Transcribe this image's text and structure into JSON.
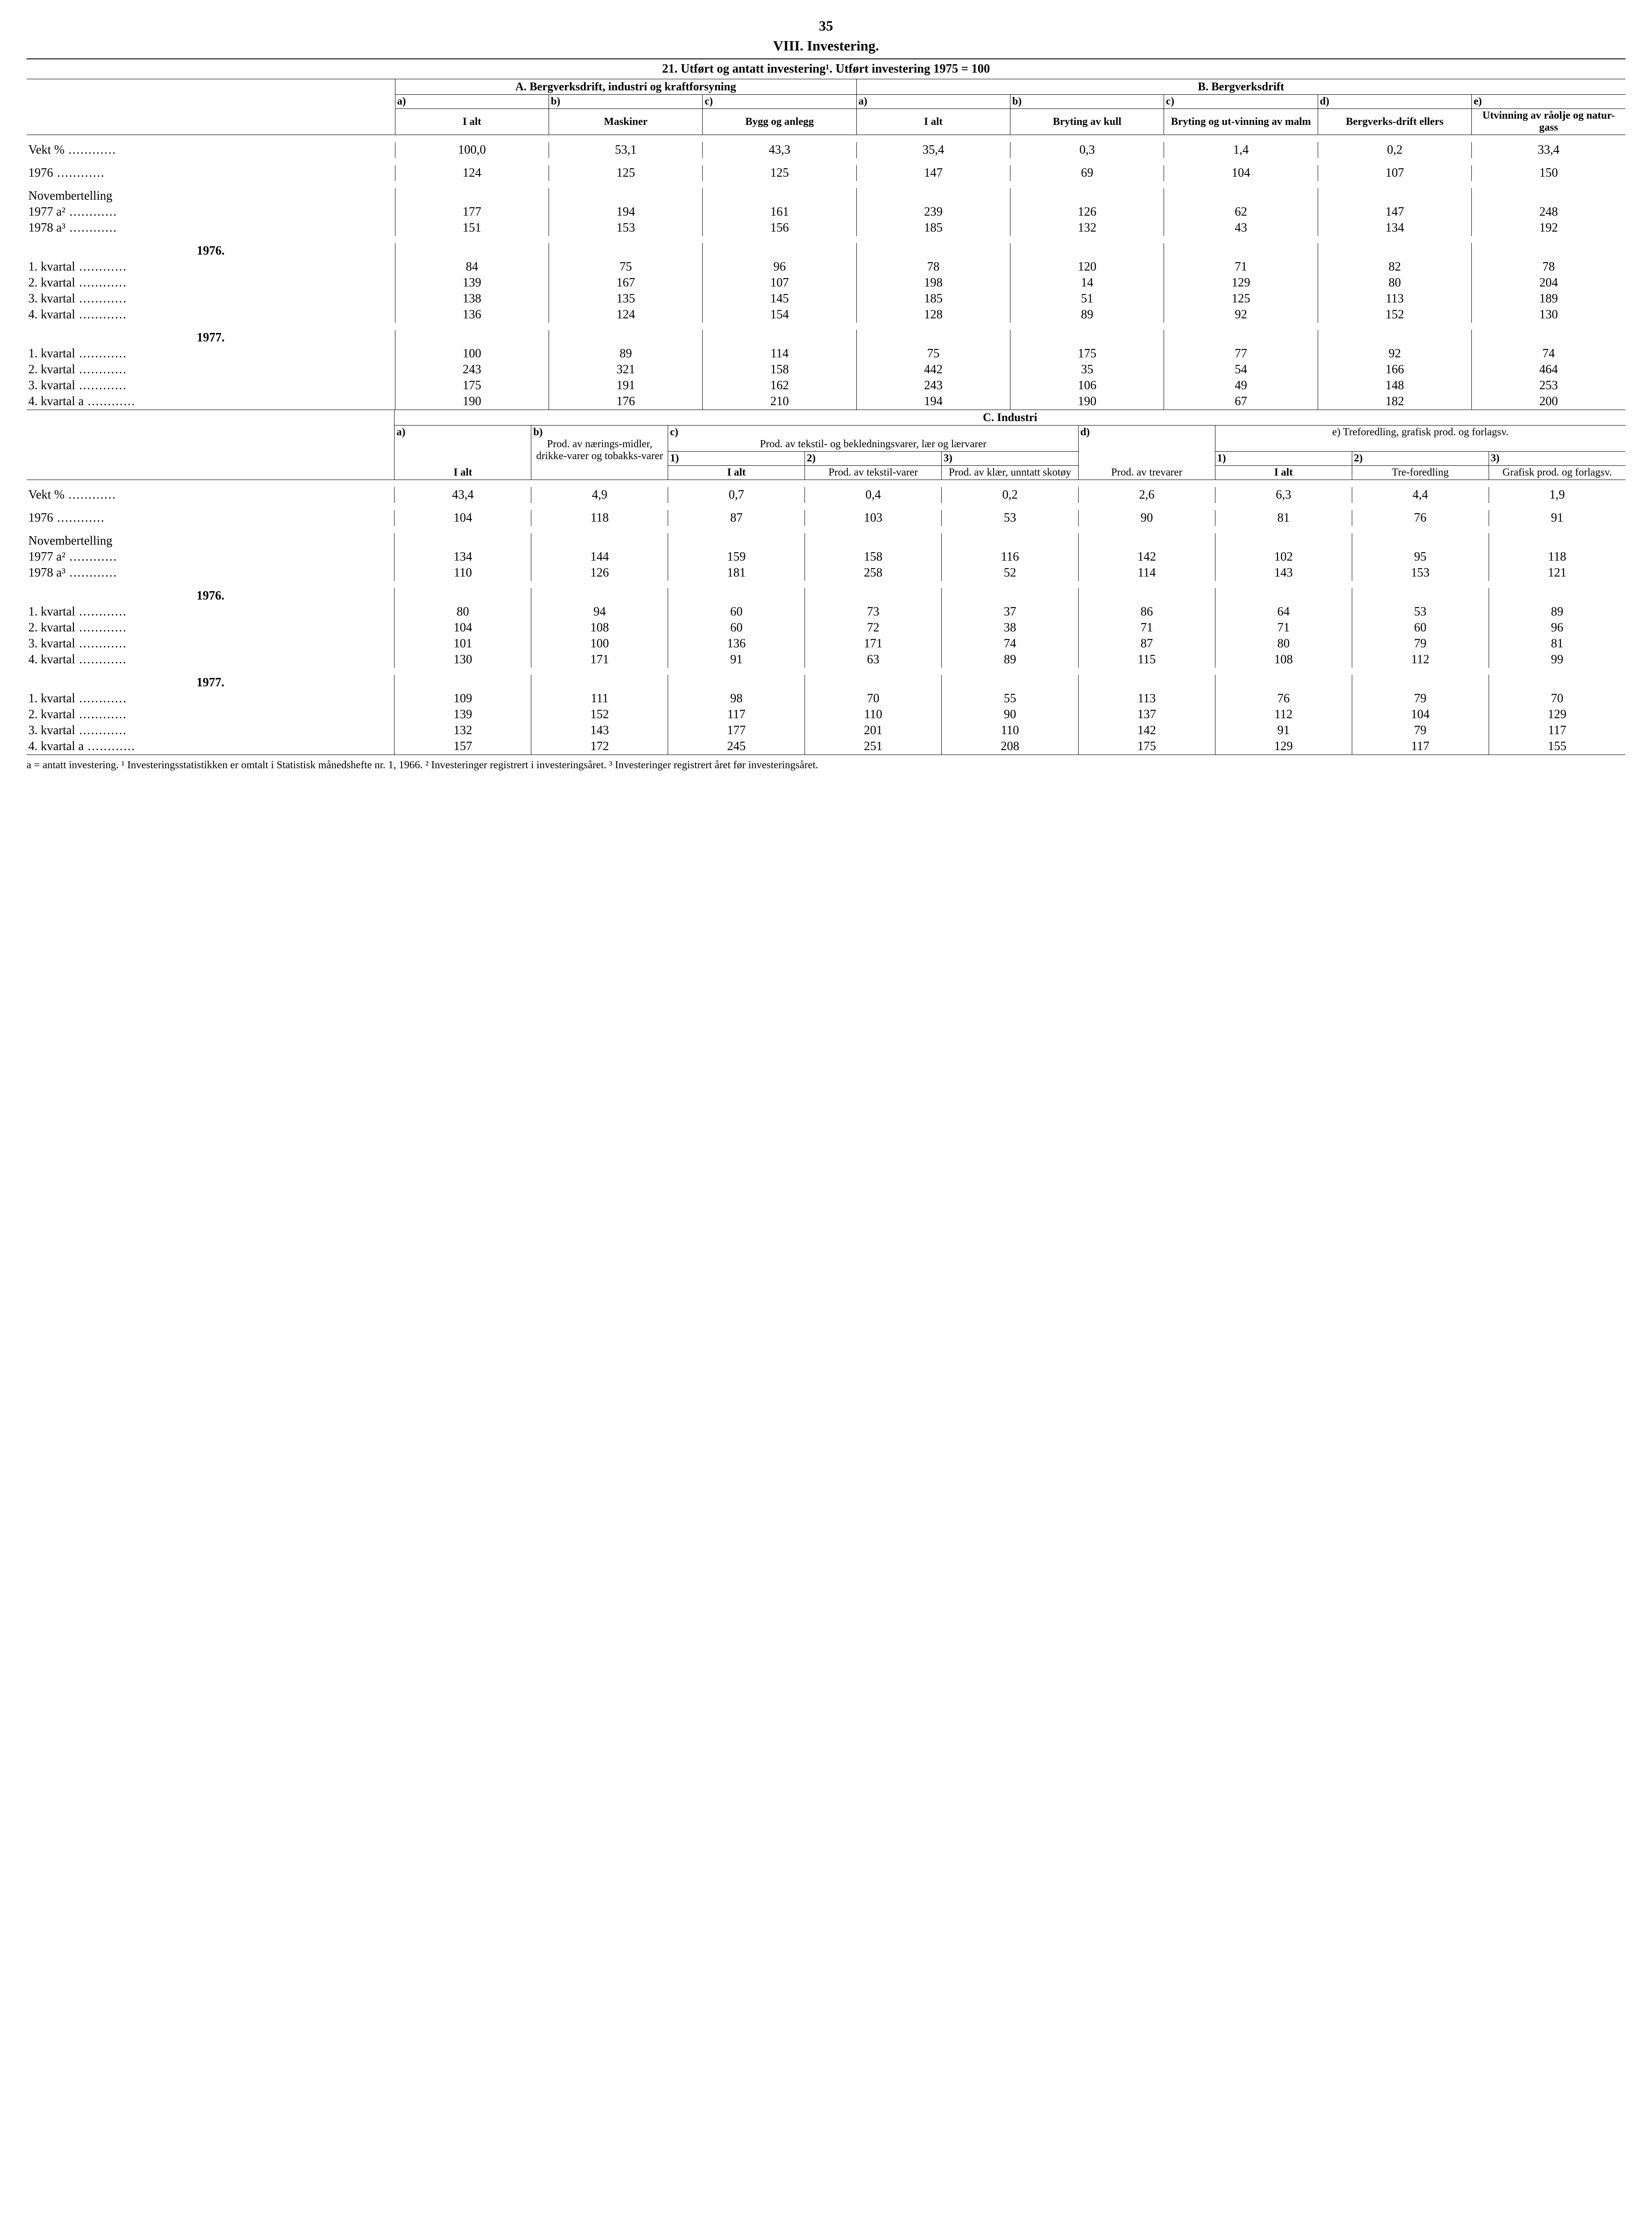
{
  "page_number": "35",
  "section_title": "VIII. Investering.",
  "table_title": "21. Utført og antatt investering¹. Utført investering 1975 = 100",
  "header": {
    "groupA": "A. Bergverksdrift, industri og kraftforsyning",
    "groupB": "B. Bergverksdrift",
    "groupC": "C. Industri",
    "a_label": "a)",
    "b_label": "b)",
    "c_label": "c)",
    "d_label": "d)",
    "e_label": "e)",
    "n1": "1)",
    "n2": "2)",
    "n3": "3)",
    "I_alt": "I alt",
    "A_a": "I alt",
    "A_b": "Maskiner",
    "A_c": "Bygg og anlegg",
    "B_a": "I alt",
    "B_b": "Bryting av kull",
    "B_c": "Bryting og ut-vinning av malm",
    "B_d": "Bergverks-drift ellers",
    "B_e": "Utvinning av råolje og natur-gass",
    "C_a": "a)",
    "C_b_title": "Prod. av nærings-midler, drikke-varer og tobakks-varer",
    "C_c_title": "Prod. av tekstil- og bekledningsvarer, lær og lærvarer",
    "C_c1": "I alt",
    "C_c2": "Prod. av tekstil-varer",
    "C_c3": "Prod. av klær, unntatt skotøy",
    "C_d": "Prod. av trevarer",
    "C_e_title": "e) Treforedling, grafisk prod. og forlagsv.",
    "C_e1": "I alt",
    "C_e2": "Tre-foredling",
    "C_e3": "Grafisk prod. og forlagsv."
  },
  "rows_top": {
    "vekt": {
      "label": "Vekt %",
      "v": [
        "100,0",
        "53,1",
        "43,3",
        "35,4",
        "0,3",
        "1,4",
        "0,2",
        "33,4"
      ]
    },
    "y1976": {
      "label": "1976",
      "v": [
        "124",
        "125",
        "125",
        "147",
        "69",
        "104",
        "107",
        "150"
      ]
    },
    "nov_title": "Novembertelling",
    "n1977": {
      "label": "1977 a²",
      "v": [
        "177",
        "194",
        "161",
        "239",
        "126",
        "62",
        "147",
        "248"
      ]
    },
    "n1978": {
      "label": "1978 a³",
      "v": [
        "151",
        "153",
        "156",
        "185",
        "132",
        "43",
        "134",
        "192"
      ]
    },
    "y76": "1976.",
    "y76q1": {
      "label": "1. kvartal",
      "v": [
        "84",
        "75",
        "96",
        "78",
        "120",
        "71",
        "82",
        "78"
      ]
    },
    "y76q2": {
      "label": "2. kvartal",
      "v": [
        "139",
        "167",
        "107",
        "198",
        "14",
        "129",
        "80",
        "204"
      ]
    },
    "y76q3": {
      "label": "3. kvartal",
      "v": [
        "138",
        "135",
        "145",
        "185",
        "51",
        "125",
        "113",
        "189"
      ]
    },
    "y76q4": {
      "label": "4. kvartal",
      "v": [
        "136",
        "124",
        "154",
        "128",
        "89",
        "92",
        "152",
        "130"
      ]
    },
    "y77": "1977.",
    "y77q1": {
      "label": "1. kvartal",
      "v": [
        "100",
        "89",
        "114",
        "75",
        "175",
        "77",
        "92",
        "74"
      ]
    },
    "y77q2": {
      "label": "2. kvartal",
      "v": [
        "243",
        "321",
        "158",
        "442",
        "35",
        "54",
        "166",
        "464"
      ]
    },
    "y77q3": {
      "label": "3. kvartal",
      "v": [
        "175",
        "191",
        "162",
        "243",
        "106",
        "49",
        "148",
        "253"
      ]
    },
    "y77q4": {
      "label": "4. kvartal a",
      "v": [
        "190",
        "176",
        "210",
        "194",
        "190",
        "67",
        "182",
        "200"
      ]
    }
  },
  "rows_bot": {
    "vekt": {
      "label": "Vekt %",
      "v": [
        "43,4",
        "4,9",
        "0,7",
        "0,4",
        "0,2",
        "2,6",
        "6,3",
        "4,4",
        "1,9"
      ]
    },
    "y1976": {
      "label": "1976",
      "v": [
        "104",
        "118",
        "87",
        "103",
        "53",
        "90",
        "81",
        "76",
        "91"
      ]
    },
    "nov_title": "Novembertelling",
    "n1977": {
      "label": "1977 a²",
      "v": [
        "134",
        "144",
        "159",
        "158",
        "116",
        "142",
        "102",
        "95",
        "118"
      ]
    },
    "n1978": {
      "label": "1978 a³",
      "v": [
        "110",
        "126",
        "181",
        "258",
        "52",
        "114",
        "143",
        "153",
        "121"
      ]
    },
    "y76": "1976.",
    "y76q1": {
      "label": "1. kvartal",
      "v": [
        "80",
        "94",
        "60",
        "73",
        "37",
        "86",
        "64",
        "53",
        "89"
      ]
    },
    "y76q2": {
      "label": "2. kvartal",
      "v": [
        "104",
        "108",
        "60",
        "72",
        "38",
        "71",
        "71",
        "60",
        "96"
      ]
    },
    "y76q3": {
      "label": "3. kvartal",
      "v": [
        "101",
        "100",
        "136",
        "171",
        "74",
        "87",
        "80",
        "79",
        "81"
      ]
    },
    "y76q4": {
      "label": "4. kvartal",
      "v": [
        "130",
        "171",
        "91",
        "63",
        "89",
        "115",
        "108",
        "112",
        "99"
      ]
    },
    "y77": "1977.",
    "y77q1": {
      "label": "1. kvartal",
      "v": [
        "109",
        "111",
        "98",
        "70",
        "55",
        "113",
        "76",
        "79",
        "70"
      ]
    },
    "y77q2": {
      "label": "2. kvartal",
      "v": [
        "139",
        "152",
        "117",
        "110",
        "90",
        "137",
        "112",
        "104",
        "129"
      ]
    },
    "y77q3": {
      "label": "3. kvartal",
      "v": [
        "132",
        "143",
        "177",
        "201",
        "110",
        "142",
        "91",
        "79",
        "117"
      ]
    },
    "y77q4": {
      "label": "4. kvartal a",
      "v": [
        "157",
        "172",
        "245",
        "251",
        "208",
        "175",
        "129",
        "117",
        "155"
      ]
    }
  },
  "footnote": "a = antatt investering.   ¹ Investeringsstatistikken er omtalt i Statistisk månedshefte nr. 1, 1966.   ² Investeringer registrert i investeringsåret.   ³ Investeringer registrert året før investeringsåret."
}
